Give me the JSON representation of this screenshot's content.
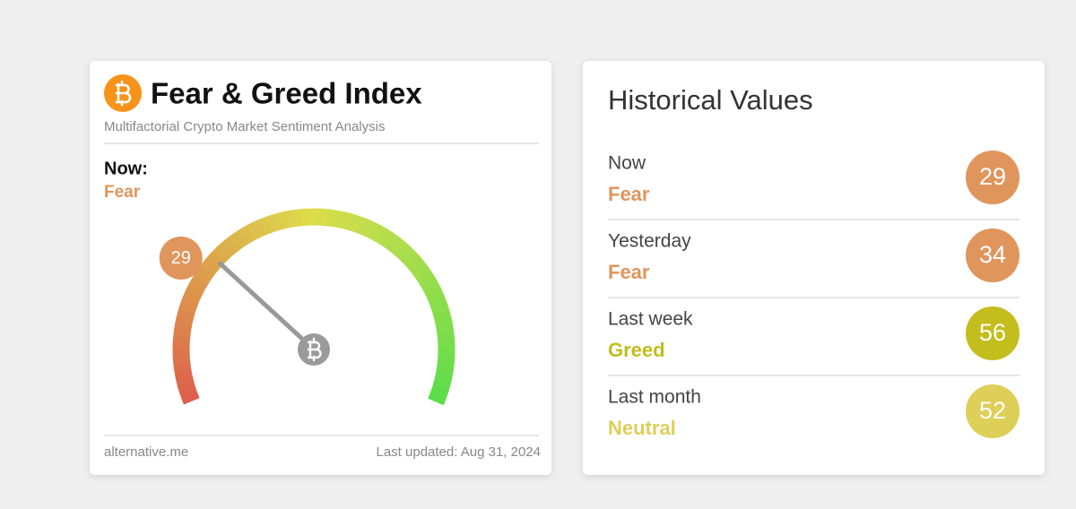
{
  "gauge_card": {
    "title": "Fear & Greed Index",
    "subtitle": "Multifactorial Crypto Market Sentiment Analysis",
    "now_label": "Now:",
    "classification": "Fear",
    "value": 29,
    "color": "#df955c",
    "range": [
      0,
      100
    ],
    "source": "alternative.me",
    "updated": "Last updated: Aug 31, 2024"
  },
  "history_card": {
    "title": "Historical Values",
    "rows": [
      {
        "label": "Now",
        "classification": "Fear",
        "value": 29,
        "color": "#df955c"
      },
      {
        "label": "Yesterday",
        "classification": "Fear",
        "value": 34,
        "color": "#df955c"
      },
      {
        "label": "Last week",
        "classification": "Greed",
        "value": 56,
        "color": "#c3bd1e"
      },
      {
        "label": "Last month",
        "classification": "Neutral",
        "value": 52,
        "color": "#ddcf58"
      }
    ]
  }
}
